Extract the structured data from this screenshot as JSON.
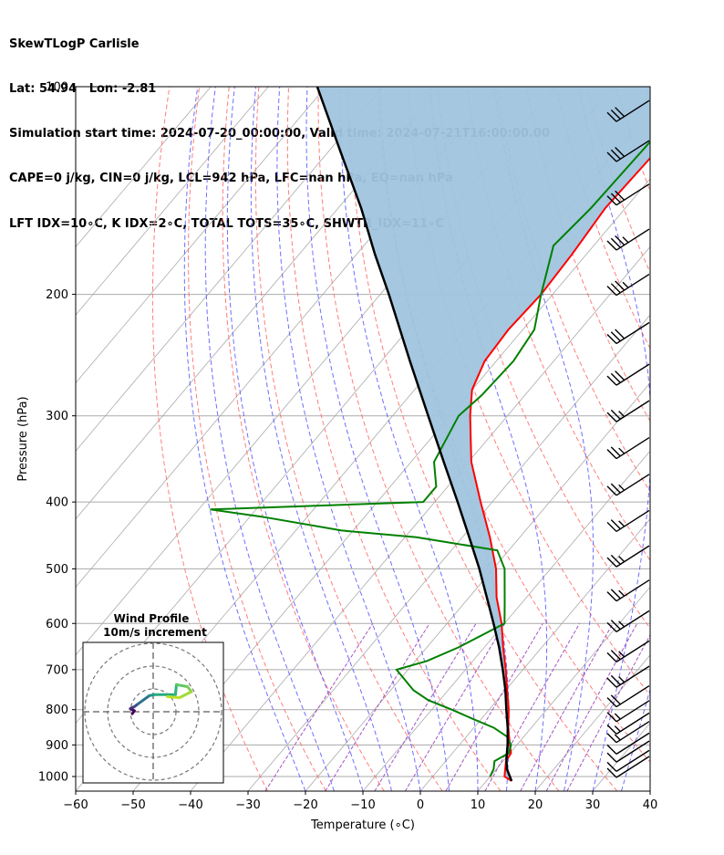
{
  "header": {
    "line1": "SkewTLogP Carlisle",
    "line2": "Lat: 54.94   Lon: -2.81",
    "line3": "Simulation start time: 2024-07-20_00:00:00, Valid time: 2024-07-21T16:00:00.00",
    "line4": "CAPE=0 j/kg, CIN=0 j/kg, LCL=942 hPa, LFC=nan hPa, EQ=nan hPa",
    "line5": "LFT IDX=10∘C, K IDX=2∘C, TOTAL TOTS=35∘C, SHWTR_IDX=11∘C"
  },
  "chart_data": {
    "type": "skewt",
    "xlabel": "Temperature (∘C)",
    "ylabel": "Pressure (hPa)",
    "xlim": [
      -60,
      40
    ],
    "ylim": [
      1050,
      100
    ],
    "x_ticks": [
      "−60",
      "−50",
      "−40",
      "−30",
      "−20",
      "−10",
      "0",
      "10",
      "20",
      "30",
      "40"
    ],
    "x_tick_values": [
      -60,
      -50,
      -40,
      -30,
      -20,
      -10,
      0,
      10,
      20,
      30,
      40
    ],
    "y_ticks": [
      "100",
      "200",
      "300",
      "400",
      "500",
      "600",
      "700",
      "800",
      "900",
      "1000"
    ],
    "y_tick_values": [
      100,
      200,
      300,
      400,
      500,
      600,
      700,
      800,
      900,
      1000
    ],
    "colors": {
      "temperature": "#ff0000",
      "dewpoint": "#008000",
      "parcel": "#000000",
      "fill": "#a0c4de",
      "dry_adiabat": "#ff6666",
      "moist_adiabat": "#4a4aff",
      "mixing_ratio": "#9944bb",
      "isotherm": "#aaaaaa",
      "isobar": "#aaaaaa"
    },
    "temperature": {
      "name": "Temperature",
      "pressure": [
        1015,
        1000,
        950,
        925,
        900,
        850,
        800,
        750,
        700,
        650,
        600,
        550,
        500,
        450,
        400,
        350,
        300,
        275,
        250,
        225,
        200,
        175,
        150,
        125,
        100
      ],
      "values": [
        14.4,
        12.5,
        10.5,
        10.2,
        8.8,
        6.0,
        3.4,
        0.3,
        -3.0,
        -6.7,
        -10.5,
        -15.2,
        -19.5,
        -25.2,
        -32.0,
        -39.5,
        -46.5,
        -50.0,
        -52.0,
        -52.5,
        -52.0,
        -52.5,
        -53.5,
        -53.0,
        -51.0
      ]
    },
    "dewpoint": {
      "name": "Dewpoint",
      "pressure": [
        1000,
        975,
        950,
        925,
        900,
        875,
        850,
        825,
        800,
        775,
        750,
        700,
        680,
        650,
        600,
        560,
        500,
        470,
        450,
        440,
        420,
        410,
        400,
        380,
        350,
        300,
        280,
        250,
        225,
        200,
        170,
        150,
        100
      ],
      "values": [
        10.0,
        9.5,
        8.5,
        9.8,
        9.0,
        7.0,
        3.5,
        -1.5,
        -6.5,
        -12.0,
        -16.0,
        -22.0,
        -18.0,
        -14.5,
        -10.0,
        -13.0,
        -18.0,
        -22.0,
        -38.0,
        -52.0,
        -68.0,
        -78.0,
        -42.0,
        -42.0,
        -46.0,
        -48.5,
        -47.5,
        -47.0,
        -48.0,
        -52.0,
        -57.0,
        -56.0,
        -55.0
      ]
    },
    "parcel": {
      "name": "Parcel profile",
      "pressure": [
        1015,
        975,
        942,
        900,
        850,
        800,
        750,
        700,
        650,
        600,
        550,
        500,
        450,
        400,
        350,
        300,
        250,
        200,
        175,
        150,
        125,
        100
      ],
      "values": [
        14.4,
        11.8,
        10.2,
        8.4,
        5.9,
        3.0,
        0.0,
        -3.5,
        -7.4,
        -11.9,
        -16.9,
        -22.4,
        -28.8,
        -36.0,
        -44.3,
        -53.8,
        -65.0,
        -78.5,
        -86.8,
        -96.0,
        -107.5,
        -121.5
      ]
    },
    "wind_barbs": [
      {
        "pressure": 1000,
        "speed_kt": 10,
        "dir_deg": 300
      },
      {
        "pressure": 980,
        "speed_kt": 10,
        "dir_deg": 300
      },
      {
        "pressure": 950,
        "speed_kt": 10,
        "dir_deg": 290
      },
      {
        "pressure": 925,
        "speed_kt": 10,
        "dir_deg": 270
      },
      {
        "pressure": 890,
        "speed_kt": 15,
        "dir_deg": 285
      },
      {
        "pressure": 865,
        "speed_kt": 15,
        "dir_deg": 290
      },
      {
        "pressure": 830,
        "speed_kt": 15,
        "dir_deg": 280
      },
      {
        "pressure": 790,
        "speed_kt": 20,
        "dir_deg": 300
      },
      {
        "pressure": 740,
        "speed_kt": 25,
        "dir_deg": 300
      },
      {
        "pressure": 680,
        "speed_kt": 25,
        "dir_deg": 300
      },
      {
        "pressure": 615,
        "speed_kt": 25,
        "dir_deg": 300
      },
      {
        "pressure": 555,
        "speed_kt": 25,
        "dir_deg": 300
      },
      {
        "pressure": 495,
        "speed_kt": 25,
        "dir_deg": 300
      },
      {
        "pressure": 440,
        "speed_kt": 25,
        "dir_deg": 300
      },
      {
        "pressure": 390,
        "speed_kt": 25,
        "dir_deg": 300
      },
      {
        "pressure": 345,
        "speed_kt": 25,
        "dir_deg": 300
      },
      {
        "pressure": 305,
        "speed_kt": 25,
        "dir_deg": 300
      },
      {
        "pressure": 270,
        "speed_kt": 30,
        "dir_deg": 300
      },
      {
        "pressure": 235,
        "speed_kt": 30,
        "dir_deg": 300
      },
      {
        "pressure": 200,
        "speed_kt": 35,
        "dir_deg": 300
      },
      {
        "pressure": 172,
        "speed_kt": 35,
        "dir_deg": 300
      },
      {
        "pressure": 148,
        "speed_kt": 30,
        "dir_deg": 300
      },
      {
        "pressure": 128,
        "speed_kt": 30,
        "dir_deg": 300
      },
      {
        "pressure": 112,
        "speed_kt": 30,
        "dir_deg": 300
      }
    ],
    "inset": {
      "title": "Wind Profile",
      "subtitle": "10m/s increment",
      "ring_radii_ms": [
        10,
        20,
        30
      ],
      "hodograph": [
        {
          "u": -4.5,
          "v": -1.0,
          "c": "#440154"
        },
        {
          "u": -3.5,
          "v": 0.5,
          "c": "#440154"
        },
        {
          "u": -5.5,
          "v": 1.5,
          "c": "#46085c"
        },
        {
          "u": -3.5,
          "v": 2.5,
          "c": "#472c7a"
        },
        {
          "u": -1.5,
          "v": 4.0,
          "c": "#3b518b"
        },
        {
          "u": 4.0,
          "v": 8.0,
          "c": "#2c718e"
        },
        {
          "u": 6.5,
          "v": 8.5,
          "c": "#21908d"
        },
        {
          "u": 17.0,
          "v": 8.5,
          "c": "#27ad81"
        },
        {
          "u": 17.5,
          "v": 13.5,
          "c": "#2fb47c"
        },
        {
          "u": 23.0,
          "v": 12.5,
          "c": "#5cc863"
        },
        {
          "u": 25.0,
          "v": 10.0,
          "c": "#7ad151"
        },
        {
          "u": 19.0,
          "v": 7.0,
          "c": "#a0da39"
        },
        {
          "u": 13.0,
          "v": 7.5,
          "c": "#bddf26"
        }
      ]
    }
  }
}
